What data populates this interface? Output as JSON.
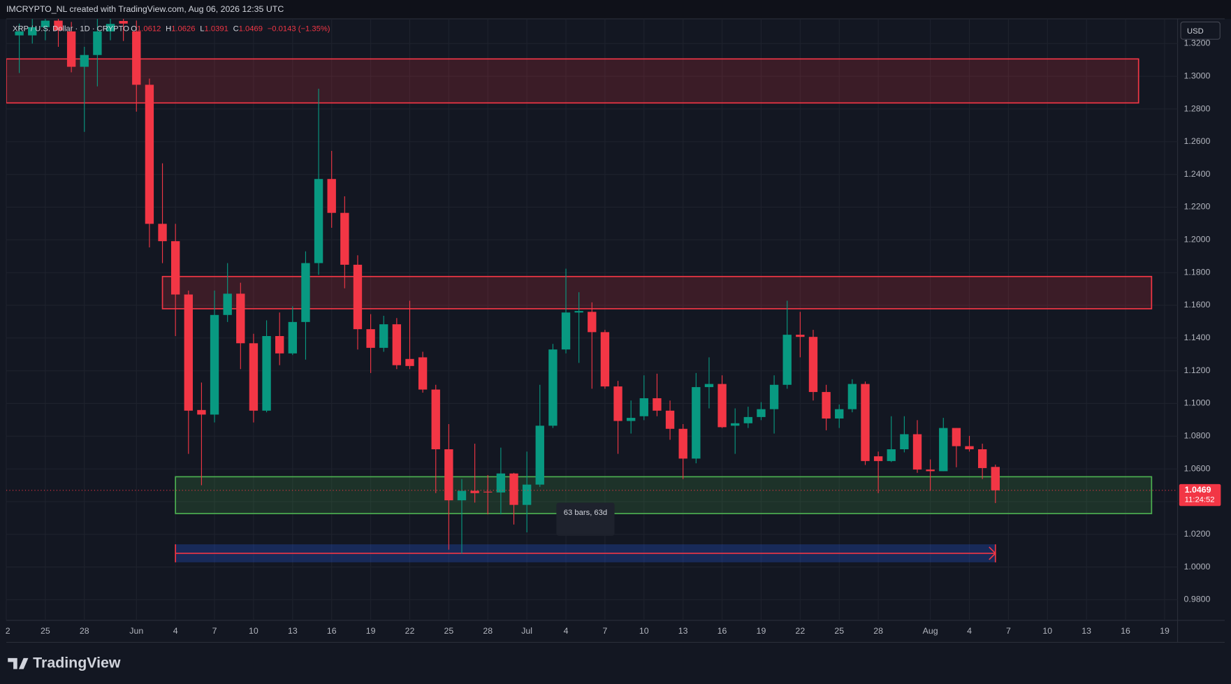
{
  "header": {
    "credit": "IMCRYPTO_NL created with TradingView.com, Aug 06, 2026 12:35 UTC",
    "logo": "TradingView"
  },
  "legend": {
    "symbol": "XRP / U.S. Dollar · 1D · CRYPTO",
    "ohlc_labels": [
      "O",
      "H",
      "L",
      "C"
    ],
    "change": "−0.0143 (−1.35%)"
  },
  "currency_button": "USD",
  "countdown": "11:24:52",
  "chart_data": {
    "type": "candlestick",
    "up_color": "#089981",
    "down_color": "#f23645",
    "x": [
      -9,
      -8,
      -7,
      -6,
      -5,
      -4,
      -3,
      -2,
      -1,
      0,
      1,
      2,
      3,
      4,
      5,
      6,
      7,
      8,
      9,
      10,
      11,
      12,
      13,
      14,
      15,
      16,
      17,
      18,
      19,
      20,
      21,
      22,
      23,
      24,
      25,
      26,
      27,
      28,
      29,
      30,
      31,
      32,
      33,
      34,
      35,
      36,
      37,
      38,
      39,
      40,
      41,
      42,
      43,
      44,
      45,
      46,
      47,
      48,
      49,
      50,
      51,
      52,
      53,
      54,
      55,
      56,
      57,
      58,
      59,
      60,
      61,
      62,
      63,
      64,
      65,
      66
    ],
    "open": [
      1.325,
      1.325,
      1.33,
      1.334,
      1.3274,
      1.3058,
      1.313,
      1.3274,
      1.3338,
      1.3274,
      1.2948,
      1.2098,
      1.1992,
      1.1666,
      1.096,
      1.0932,
      1.1541,
      1.1671,
      1.1368,
      1.0956,
      1.1412,
      1.1306,
      1.1498,
      1.1858,
      1.2372,
      1.2165,
      1.1848,
      1.1454,
      1.134,
      1.1484,
      1.1272,
      1.1282,
      1.1085,
      1.072,
      1.0408,
      1.0466,
      1.0461,
      1.0456,
      1.0572,
      1.038,
      1.0504,
      1.0864,
      1.133,
      1.1556,
      1.156,
      1.1436,
      1.1104,
      1.0893,
      1.0922,
      1.1032,
      1.0956,
      1.0845,
      1.0663,
      1.11,
      1.1119,
      1.0864,
      1.0879,
      1.0917,
      1.0965,
      1.1114,
      1.142,
      1.1407,
      1.107,
      1.0908,
      1.0965,
      1.1119,
      1.0677,
      1.0648,
      1.072,
      1.0812,
      1.0596,
      1.0586,
      1.085,
      1.0739,
      1.072,
      1.0612
    ],
    "high": [
      1.3322,
      1.335,
      1.34,
      1.338,
      1.3332,
      1.318,
      1.335,
      1.338,
      1.338,
      1.334,
      1.2986,
      1.2468,
      1.2098,
      1.169,
      1.1128,
      1.169,
      1.1858,
      1.1738,
      1.1426,
      1.1508,
      1.1556,
      1.1594,
      1.193,
      1.2924,
      1.2544,
      1.2266,
      1.1906,
      1.1546,
      1.1536,
      1.1522,
      1.1628,
      1.1316,
      1.1114,
      1.0874,
      1.0538,
      1.0754,
      1.0562,
      1.073,
      1.0576,
      1.0706,
      1.1114,
      1.1364,
      1.1824,
      1.168,
      1.1618,
      1.145,
      1.1138,
      1.1018,
      1.1172,
      1.1182,
      1.1018,
      1.0874,
      1.1186,
      1.1282,
      1.1172,
      1.097,
      1.098,
      1.1008,
      1.1172,
      1.1628,
      1.156,
      1.145,
      1.1114,
      1.0994,
      1.1148,
      1.1134,
      1.0706,
      1.0922,
      1.0922,
      1.0898,
      1.0658,
      1.0912,
      1.085,
      1.0802,
      1.0754,
      1.0626
    ],
    "low": [
      1.302,
      1.32,
      1.322,
      1.318,
      1.3024,
      1.266,
      1.2938,
      1.322,
      1.3216,
      1.2784,
      1.1954,
      1.1858,
      1.1412,
      1.0692,
      1.05,
      1.0884,
      1.1498,
      1.121,
      1.0884,
      1.0946,
      1.1234,
      1.1296,
      1.1268,
      1.1786,
      1.2074,
      1.1704,
      1.133,
      1.1186,
      1.1316,
      1.121,
      1.121,
      1.1066,
      1.0452,
      1.0106,
      1.0082,
      1.0394,
      1.0322,
      1.0322,
      1.026,
      1.0212,
      1.049,
      1.085,
      1.1306,
      1.1248,
      1.109,
      1.109,
      1.0692,
      1.0816,
      1.0898,
      1.0922,
      1.0778,
      1.0538,
      1.0634,
      1.097,
      1.085,
      1.0692,
      1.085,
      1.0898,
      1.0816,
      1.109,
      1.1282,
      1.1018,
      1.0836,
      1.085,
      1.0946,
      1.0624,
      1.0452,
      1.0642,
      1.0701,
      1.0576,
      1.0466,
      1.0586,
      1.061,
      1.0706,
      1.0538,
      1.0391
    ],
    "close": [
      1.3274,
      1.33,
      1.334,
      1.328,
      1.3058,
      1.313,
      1.3274,
      1.332,
      1.3322,
      1.2948,
      1.2098,
      1.1992,
      1.1666,
      1.0956,
      1.0932,
      1.1541,
      1.1671,
      1.1368,
      1.0956,
      1.1412,
      1.1306,
      1.1498,
      1.1858,
      1.2372,
      1.2165,
      1.1848,
      1.1454,
      1.134,
      1.1484,
      1.1234,
      1.1229,
      1.1085,
      1.072,
      1.0408,
      1.0466,
      1.0452,
      1.0456,
      1.0572,
      1.038,
      1.0504,
      1.0864,
      1.133,
      1.1556,
      1.1565,
      1.1436,
      1.1104,
      1.0893,
      1.0912,
      1.1032,
      1.0956,
      1.0845,
      1.0663,
      1.11,
      1.1119,
      1.0855,
      1.0879,
      1.0917,
      1.0965,
      1.1114,
      1.142,
      1.1407,
      1.107,
      1.0908,
      1.0965,
      1.1119,
      1.0648,
      1.0648,
      1.072,
      1.0812,
      1.0596,
      1.0586,
      1.085,
      1.0739,
      1.072,
      1.0605,
      1.0469
    ],
    "xlim": [
      -10,
      80
    ],
    "xticks": [
      {
        "value": -10,
        "label": "2"
      },
      {
        "value": -7,
        "label": "25"
      },
      {
        "value": -4,
        "label": "28"
      },
      {
        "value": 0,
        "label": "Jun"
      },
      {
        "value": 3,
        "label": "4"
      },
      {
        "value": 6,
        "label": "7"
      },
      {
        "value": 9,
        "label": "10"
      },
      {
        "value": 12,
        "label": "13"
      },
      {
        "value": 15,
        "label": "16"
      },
      {
        "value": 18,
        "label": "19"
      },
      {
        "value": 21,
        "label": "22"
      },
      {
        "value": 24,
        "label": "25"
      },
      {
        "value": 27,
        "label": "28"
      },
      {
        "value": 30,
        "label": "Jul"
      },
      {
        "value": 33,
        "label": "4"
      },
      {
        "value": 36,
        "label": "7"
      },
      {
        "value": 39,
        "label": "10"
      },
      {
        "value": 42,
        "label": "13"
      },
      {
        "value": 45,
        "label": "16"
      },
      {
        "value": 48,
        "label": "19"
      },
      {
        "value": 51,
        "label": "22"
      },
      {
        "value": 54,
        "label": "25"
      },
      {
        "value": 57,
        "label": "28"
      },
      {
        "value": 61,
        "label": "Aug"
      },
      {
        "value": 64,
        "label": "4"
      },
      {
        "value": 67,
        "label": "7"
      },
      {
        "value": 70,
        "label": "10"
      },
      {
        "value": 73,
        "label": "13"
      },
      {
        "value": 76,
        "label": "16"
      },
      {
        "value": 79,
        "label": "19"
      }
    ],
    "ylim": [
      0.9674,
      1.3351
    ],
    "yticks": [
      {
        "value": 0.98,
        "label": "0.9800"
      },
      {
        "value": 1.0,
        "label": "1.0000"
      },
      {
        "value": 1.02,
        "label": "1.0200"
      },
      {
        "value": 1.04,
        "label": "1.0400"
      },
      {
        "value": 1.06,
        "label": "1.0600"
      },
      {
        "value": 1.08,
        "label": "1.0800"
      },
      {
        "value": 1.1,
        "label": "1.1000"
      },
      {
        "value": 1.12,
        "label": "1.1200"
      },
      {
        "value": 1.14,
        "label": "1.1400"
      },
      {
        "value": 1.16,
        "label": "1.1600"
      },
      {
        "value": 1.18,
        "label": "1.1800"
      },
      {
        "value": 1.2,
        "label": "1.2000"
      },
      {
        "value": 1.22,
        "label": "1.2200"
      },
      {
        "value": 1.24,
        "label": "1.2400"
      },
      {
        "value": 1.26,
        "label": "1.2600"
      },
      {
        "value": 1.28,
        "label": "1.2800"
      },
      {
        "value": 1.3,
        "label": "1.3000"
      },
      {
        "value": 1.32,
        "label": "1.3200"
      }
    ],
    "grid": true,
    "zones": [
      {
        "x": [
          -10,
          77
        ],
        "y": [
          1.2837,
          1.3106
        ],
        "color": "#f23645"
      },
      {
        "x": [
          2,
          78
        ],
        "y": [
          1.1579,
          1.1776
        ],
        "color": "#f23645"
      },
      {
        "x": [
          3,
          78
        ],
        "y": [
          1.0327,
          1.0552
        ],
        "color": "#4caf50"
      }
    ],
    "range": {
      "x": [
        3,
        66
      ],
      "y": [
        1.0029,
        1.0139
      ],
      "label": "63 bars, 63d",
      "color": "#f23645"
    }
  }
}
